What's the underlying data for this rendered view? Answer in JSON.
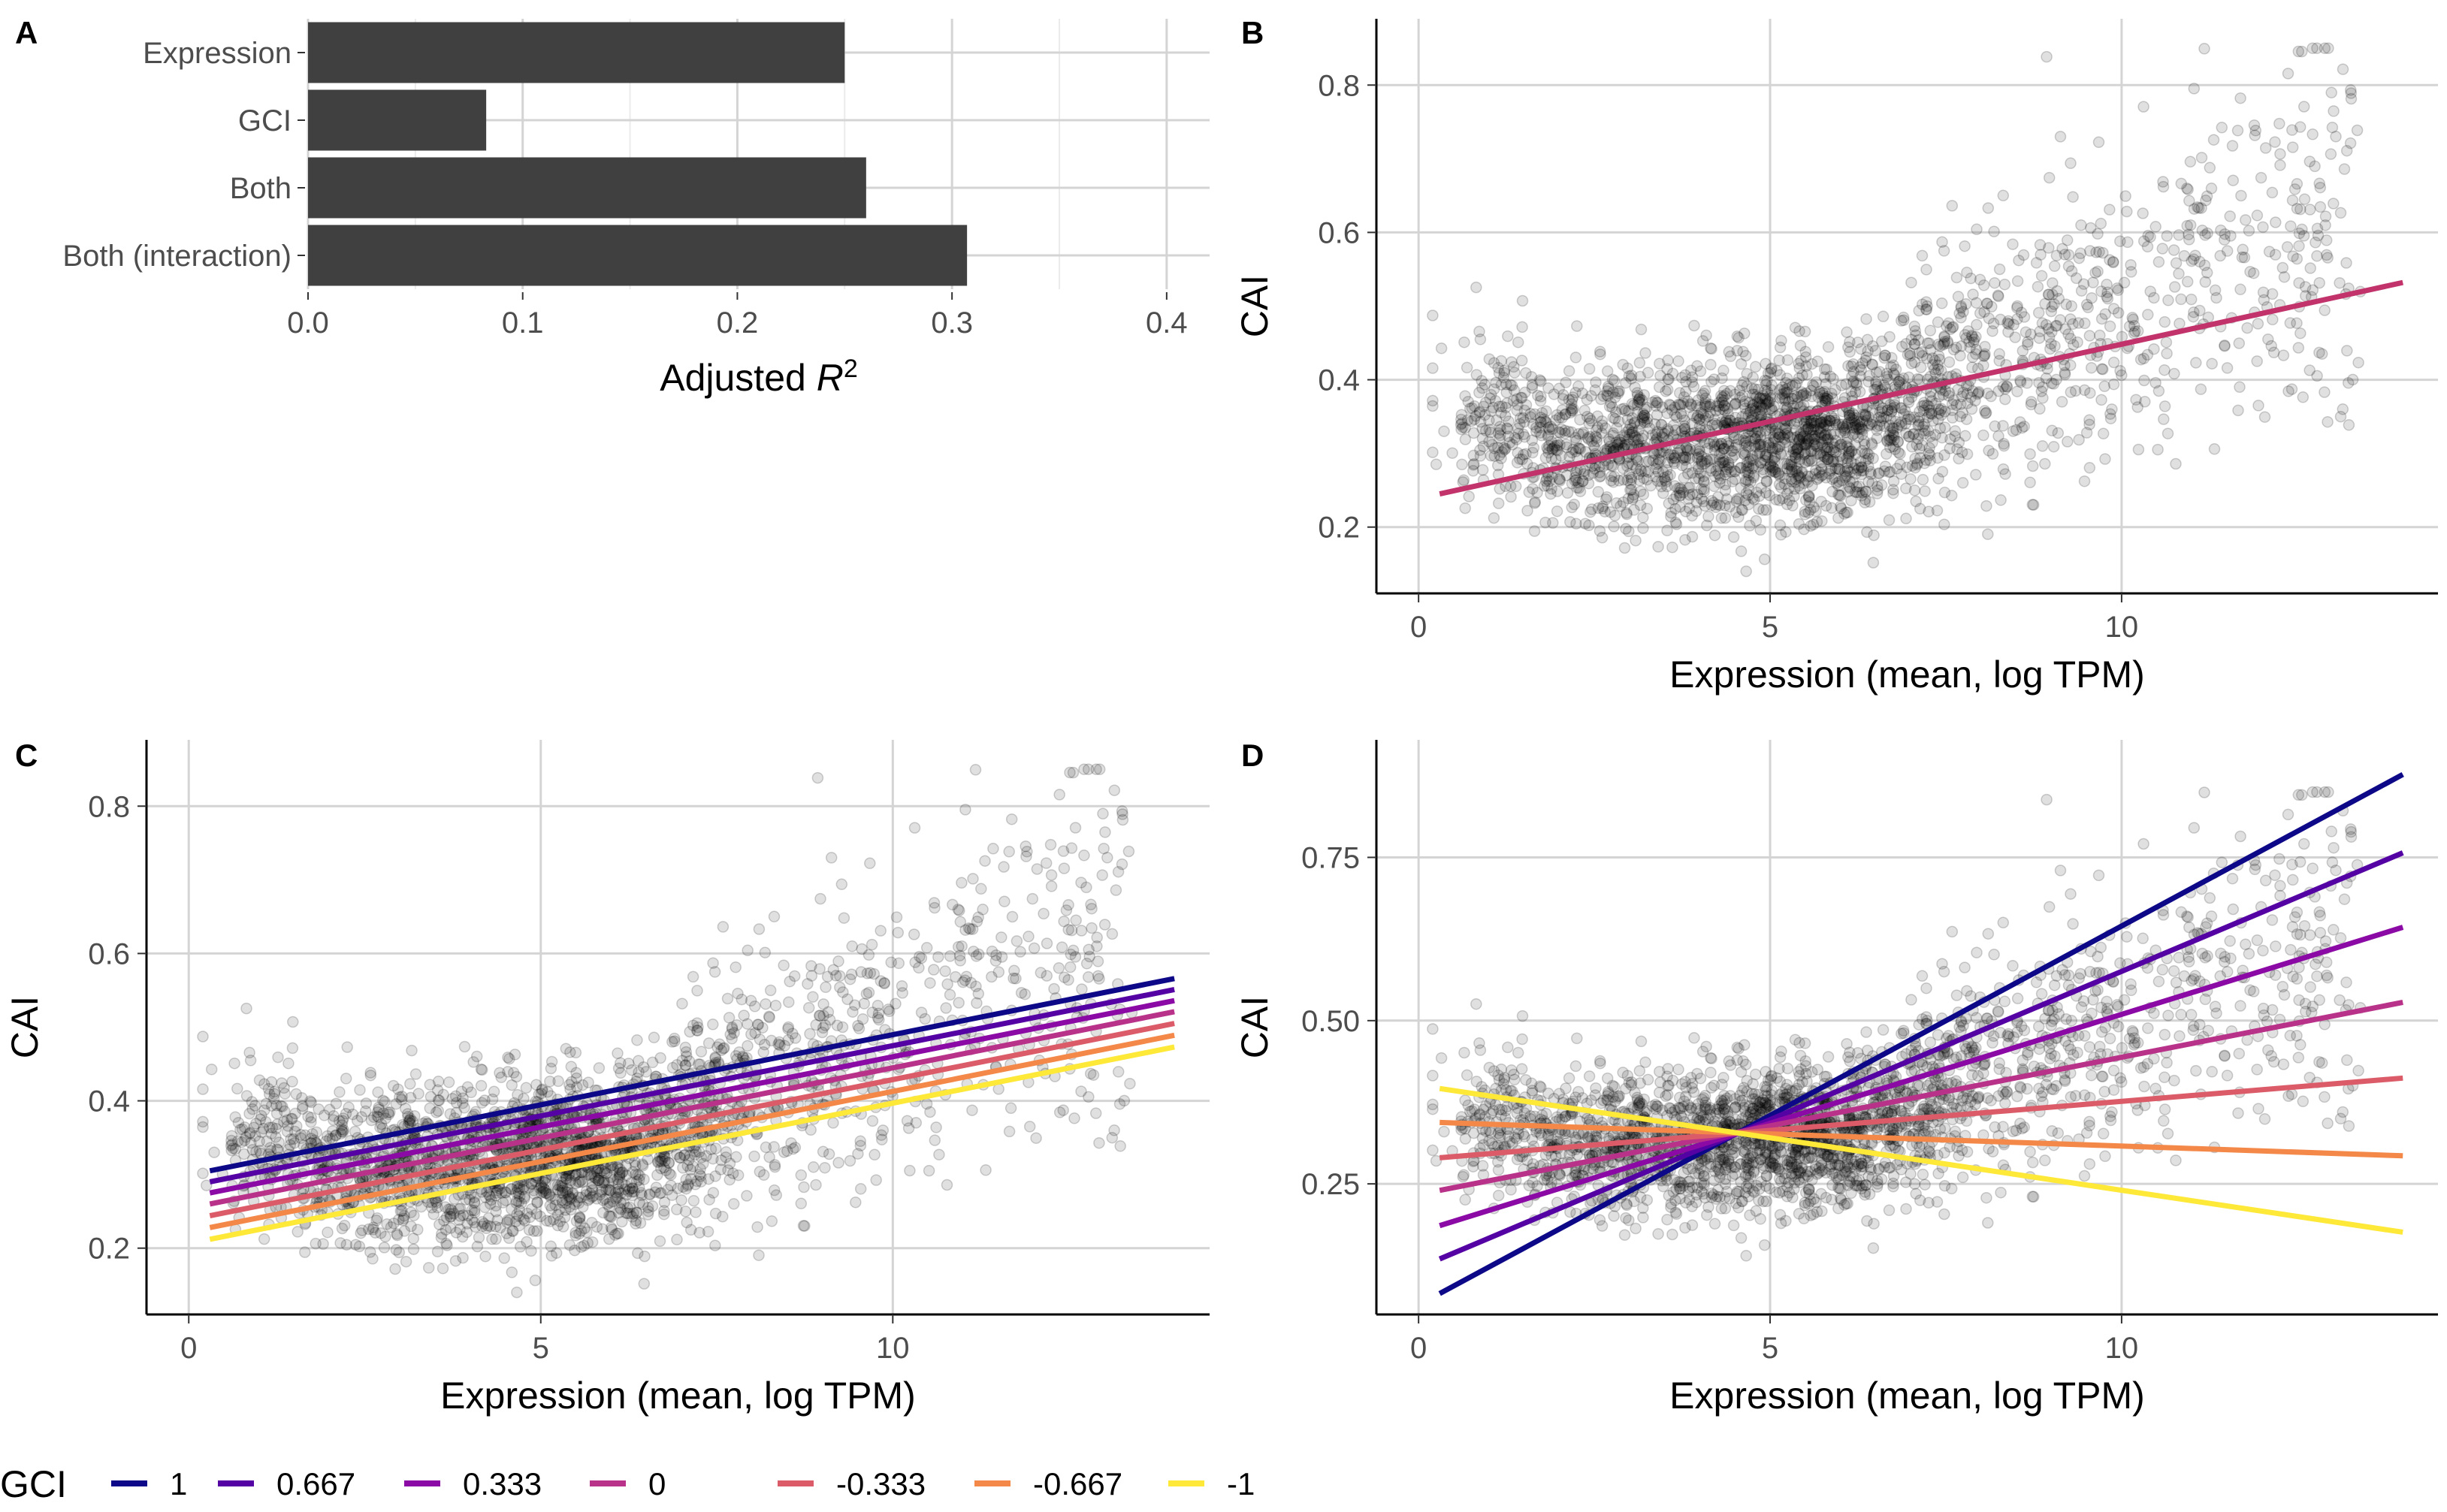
{
  "panels": {
    "A": {
      "letter": "A"
    },
    "B": {
      "letter": "B"
    },
    "C": {
      "letter": "C"
    },
    "D": {
      "letter": "D"
    }
  },
  "chart_data": [
    {
      "panel": "A",
      "type": "bar",
      "orientation": "horizontal",
      "categories": [
        "Expression",
        "GCI",
        "Both",
        "Both (interaction)"
      ],
      "values": [
        0.25,
        0.083,
        0.26,
        0.307
      ],
      "xlabel": "Adjusted R2",
      "xlabel_main": "Adjusted ",
      "xlabel_italic": "R",
      "xlabel_sup": "2",
      "xlim": [
        0,
        0.42
      ],
      "xticks": [
        "0.0",
        "0.1",
        "0.2",
        "0.3",
        "0.4"
      ],
      "bar_color": "#404040",
      "grid": true
    },
    {
      "panel": "B",
      "type": "scatter",
      "xlabel": "Expression (mean, log TPM)",
      "ylabel": "CAI",
      "xlim": [
        -0.6,
        14.5
      ],
      "ylim": [
        0.11,
        0.89
      ],
      "xticks": [
        "0",
        "5",
        "10"
      ],
      "yticks": [
        "0.2",
        "0.4",
        "0.6",
        "0.8"
      ],
      "point_color": "#000000",
      "fit_lines": [
        {
          "color": "#c2336b",
          "x": [
            0.3,
            14.0
          ],
          "y": [
            0.245,
            0.532
          ]
        }
      ],
      "grid": true
    },
    {
      "panel": "C",
      "type": "scatter",
      "xlabel": "Expression (mean, log TPM)",
      "ylabel": "CAI",
      "xlim": [
        -0.6,
        14.5
      ],
      "ylim": [
        0.11,
        0.89
      ],
      "xticks": [
        "0",
        "5",
        "10"
      ],
      "yticks": [
        "0.2",
        "0.4",
        "0.6",
        "0.8"
      ],
      "point_color": "#000000",
      "legend": {
        "title": "GCI",
        "position": "bottom",
        "entries": [
          "1",
          "0.667",
          "0.333",
          "0",
          "-0.333",
          "-0.667",
          "-1"
        ],
        "colors": [
          "#0d0887",
          "#5402a3",
          "#8b0aa5",
          "#b93289",
          "#db5c68",
          "#f48849",
          "#fee838"
        ]
      },
      "fit_lines": [
        {
          "color": "#0d0887",
          "x": [
            0.3,
            14.0
          ],
          "y": [
            0.305,
            0.566
          ]
        },
        {
          "color": "#5402a3",
          "x": [
            0.3,
            14.0
          ],
          "y": [
            0.29,
            0.551
          ]
        },
        {
          "color": "#8b0aa5",
          "x": [
            0.3,
            14.0
          ],
          "y": [
            0.275,
            0.536
          ]
        },
        {
          "color": "#b93289",
          "x": [
            0.3,
            14.0
          ],
          "y": [
            0.26,
            0.521
          ]
        },
        {
          "color": "#db5c68",
          "x": [
            0.3,
            14.0
          ],
          "y": [
            0.244,
            0.505
          ]
        },
        {
          "color": "#f48849",
          "x": [
            0.3,
            14.0
          ],
          "y": [
            0.228,
            0.489
          ]
        },
        {
          "color": "#fee838",
          "x": [
            0.3,
            14.0
          ],
          "y": [
            0.212,
            0.473
          ]
        }
      ],
      "grid": true
    },
    {
      "panel": "D",
      "type": "scatter",
      "xlabel": "Expression (mean, log TPM)",
      "ylabel": "CAI",
      "xlim": [
        -0.6,
        14.5
      ],
      "ylim": [
        0.05,
        0.93
      ],
      "xticks": [
        "0",
        "5",
        "10"
      ],
      "yticks": [
        "0.25",
        "0.50",
        "0.75"
      ],
      "point_color": "#000000",
      "fit_lines": [
        {
          "color": "#0d0887",
          "x": [
            0.3,
            14.0
          ],
          "y": [
            0.082,
            0.877
          ]
        },
        {
          "color": "#5402a3",
          "x": [
            0.3,
            14.0
          ],
          "y": [
            0.135,
            0.757
          ]
        },
        {
          "color": "#8b0aa5",
          "x": [
            0.3,
            14.0
          ],
          "y": [
            0.186,
            0.643
          ]
        },
        {
          "color": "#b93289",
          "x": [
            0.3,
            14.0
          ],
          "y": [
            0.24,
            0.528
          ]
        },
        {
          "color": "#db5c68",
          "x": [
            0.3,
            14.0
          ],
          "y": [
            0.29,
            0.412
          ]
        },
        {
          "color": "#f48849",
          "x": [
            0.3,
            14.0
          ],
          "y": [
            0.344,
            0.293
          ]
        },
        {
          "color": "#fee838",
          "x": [
            0.3,
            14.0
          ],
          "y": [
            0.396,
            0.176
          ]
        }
      ],
      "grid": true
    }
  ]
}
